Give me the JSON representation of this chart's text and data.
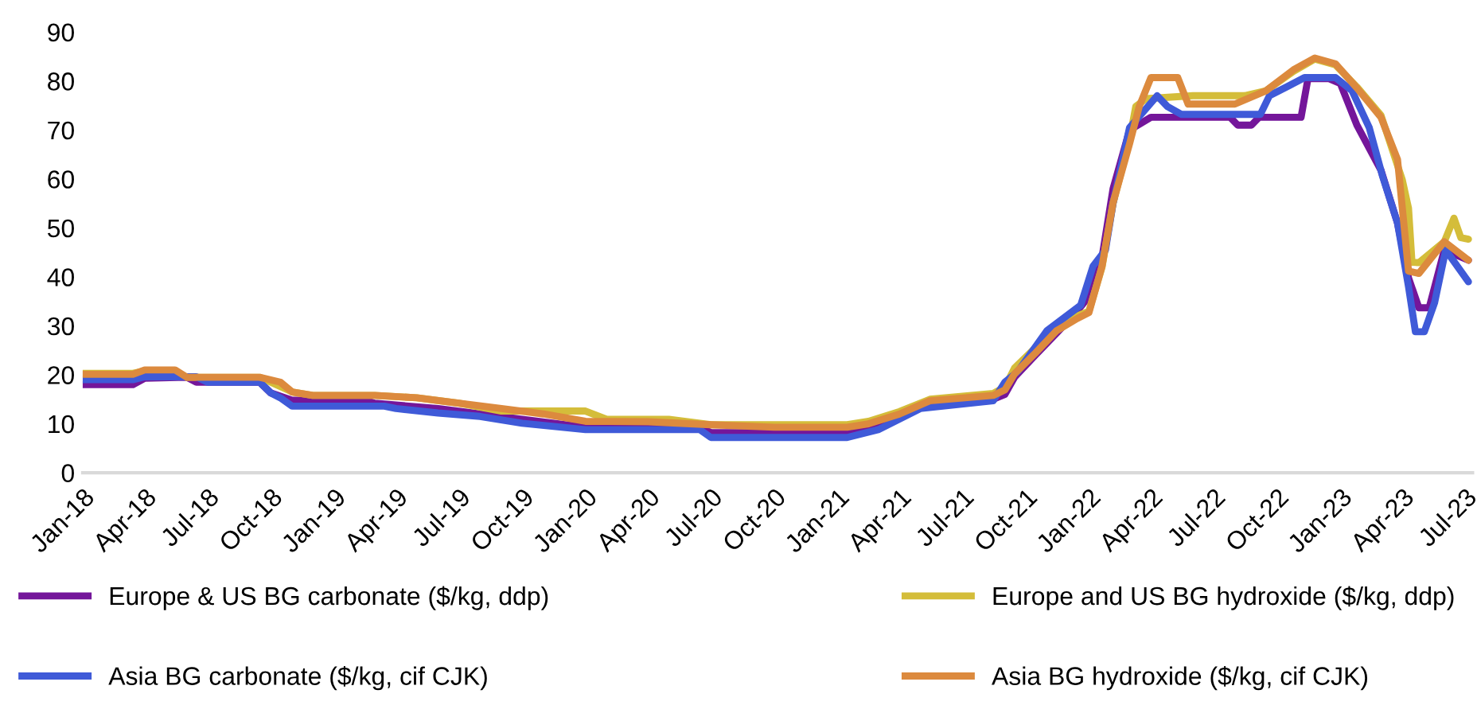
{
  "chart_data": {
    "type": "line",
    "ylim": [
      0,
      90
    ],
    "yticks": [
      0,
      10,
      20,
      30,
      40,
      50,
      60,
      70,
      80,
      90
    ],
    "xlim": [
      "2018-01-01",
      "2023-07-12"
    ],
    "xticks": [
      {
        "value": "2018-01-01",
        "label": "Jan-18"
      },
      {
        "value": "2018-04-01",
        "label": "Apr-18"
      },
      {
        "value": "2018-07-01",
        "label": "Jul-18"
      },
      {
        "value": "2018-10-01",
        "label": "Oct-18"
      },
      {
        "value": "2019-01-01",
        "label": "Jan-19"
      },
      {
        "value": "2019-04-01",
        "label": "Apr-19"
      },
      {
        "value": "2019-07-01",
        "label": "Jul-19"
      },
      {
        "value": "2019-10-01",
        "label": "Oct-19"
      },
      {
        "value": "2020-01-01",
        "label": "Jan-20"
      },
      {
        "value": "2020-04-01",
        "label": "Apr-20"
      },
      {
        "value": "2020-07-01",
        "label": "Jul-20"
      },
      {
        "value": "2020-10-01",
        "label": "Oct-20"
      },
      {
        "value": "2021-01-01",
        "label": "Jan-21"
      },
      {
        "value": "2021-04-01",
        "label": "Apr-21"
      },
      {
        "value": "2021-07-01",
        "label": "Jul-21"
      },
      {
        "value": "2021-10-01",
        "label": "Oct-21"
      },
      {
        "value": "2022-01-01",
        "label": "Jan-22"
      },
      {
        "value": "2022-04-01",
        "label": "Apr-22"
      },
      {
        "value": "2022-07-01",
        "label": "Jul-22"
      },
      {
        "value": "2022-10-01",
        "label": "Oct-22"
      },
      {
        "value": "2023-01-01",
        "label": "Jan-23"
      },
      {
        "value": "2023-04-01",
        "label": "Apr-23"
      },
      {
        "value": "2023-07-01",
        "label": "Jul-23"
      }
    ],
    "grid": false,
    "legend": "bottom",
    "marker": "none",
    "line_style": "solid",
    "series": [
      {
        "name": "Europe & US BG carbonate ($/kg, ddp)",
        "color": "#74169a",
        "x": [
          "2018-01-01",
          "2018-03-15",
          "2018-04-01",
          "2018-06-01",
          "2018-06-15",
          "2018-09-15",
          "2018-10-01",
          "2018-11-01",
          "2019-02-15",
          "2019-03-01",
          "2019-06-01",
          "2019-08-01",
          "2019-10-01",
          "2020-01-01",
          "2020-06-15",
          "2020-07-01",
          "2021-01-15",
          "2021-02-15",
          "2021-04-01",
          "2021-05-15",
          "2021-08-15",
          "2021-09-01",
          "2021-09-15",
          "2021-10-15",
          "2021-11-15",
          "2021-12-15",
          "2022-01-01",
          "2022-01-20",
          "2022-02-05",
          "2022-03-01",
          "2022-04-01",
          "2022-07-25",
          "2022-08-05",
          "2022-08-25",
          "2022-09-05",
          "2022-11-05",
          "2022-11-15",
          "2022-12-15",
          "2023-01-01",
          "2023-01-25",
          "2023-03-01",
          "2023-03-25",
          "2023-04-10",
          "2023-04-25",
          "2023-05-10",
          "2023-06-01",
          "2023-07-06"
        ],
        "values": [
          18,
          18,
          19.3,
          19.5,
          18.5,
          18.5,
          16.3,
          14.8,
          14.8,
          14.2,
          13.1,
          12,
          10.9,
          9.3,
          9.3,
          8.2,
          8.2,
          9,
          11.5,
          14,
          15,
          16,
          19.5,
          24,
          28.5,
          33,
          36,
          44,
          58,
          70,
          72.6,
          72.6,
          71,
          71,
          72.6,
          72.6,
          80.5,
          80.5,
          79.5,
          71,
          61.8,
          51,
          39.8,
          33.7,
          33.7,
          45.5,
          43.4
        ]
      },
      {
        "name": "Europe and US BG hydroxide ($/kg, ddp)",
        "color": "#d4bd3a",
        "x": [
          "2018-01-01",
          "2018-03-15",
          "2018-04-01",
          "2018-05-15",
          "2018-06-01",
          "2018-09-15",
          "2018-11-01",
          "2018-12-01",
          "2019-03-01",
          "2019-05-01",
          "2019-07-01",
          "2019-09-01",
          "2020-01-01",
          "2020-02-01",
          "2020-05-01",
          "2020-07-01",
          "2021-01-15",
          "2021-02-15",
          "2021-04-01",
          "2021-05-15",
          "2021-08-15",
          "2021-09-01",
          "2021-09-15",
          "2021-10-15",
          "2021-11-15",
          "2021-12-15",
          "2022-01-01",
          "2022-01-20",
          "2022-02-05",
          "2022-03-01",
          "2022-03-10",
          "2022-03-25",
          "2022-06-01",
          "2022-08-15",
          "2022-09-15",
          "2022-10-25",
          "2022-11-25",
          "2022-12-25",
          "2023-01-25",
          "2023-03-01",
          "2023-04-01",
          "2023-04-10",
          "2023-04-15",
          "2023-04-25",
          "2023-06-01",
          "2023-06-15",
          "2023-06-25",
          "2023-07-06"
        ],
        "values": [
          20.3,
          20.3,
          20.8,
          20.8,
          19.5,
          19.5,
          16.5,
          15.8,
          15.8,
          15.3,
          14.2,
          12.6,
          12.6,
          10.9,
          10.9,
          9.8,
          9.8,
          10.5,
          12.5,
          15,
          16.2,
          17.5,
          21.4,
          25.5,
          29.5,
          32,
          33,
          42,
          55,
          68,
          74.8,
          76.4,
          77,
          77,
          78,
          82,
          84.5,
          83.3,
          78.8,
          73,
          59.8,
          54,
          43,
          42.9,
          47.2,
          52,
          48,
          47.7
        ]
      },
      {
        "name": "Asia BG carbonate ($/kg, cif CJK)",
        "color": "#3f5ad8",
        "x": [
          "2018-01-01",
          "2018-03-15",
          "2018-04-01",
          "2018-06-15",
          "2018-07-01",
          "2018-09-15",
          "2018-10-01",
          "2018-10-15",
          "2018-11-01",
          "2019-03-15",
          "2019-04-01",
          "2019-06-01",
          "2019-08-01",
          "2019-10-01",
          "2020-01-01",
          "2020-06-15",
          "2020-07-01",
          "2021-01-15",
          "2021-03-01",
          "2021-05-01",
          "2021-08-15",
          "2021-09-01",
          "2021-09-20",
          "2021-11-01",
          "2021-12-20",
          "2022-01-07",
          "2022-01-25",
          "2022-02-05",
          "2022-03-01",
          "2022-04-10",
          "2022-04-25",
          "2022-05-15",
          "2022-09-07",
          "2022-09-20",
          "2022-10-15",
          "2022-11-10",
          "2022-12-25",
          "2023-01-18",
          "2023-02-12",
          "2023-03-03",
          "2023-03-25",
          "2023-04-10",
          "2023-04-20",
          "2023-05-03",
          "2023-05-18",
          "2023-06-03",
          "2023-07-06"
        ],
        "values": [
          19,
          19,
          19.6,
          19.6,
          18.5,
          18.5,
          16.3,
          15.3,
          13.6,
          13.6,
          13.1,
          12.2,
          11.5,
          10.1,
          8.8,
          8.8,
          7.2,
          7.2,
          8.8,
          13.1,
          14.7,
          18.5,
          20.7,
          29,
          34.2,
          42.2,
          45.5,
          55,
          70.5,
          77,
          74.8,
          73.2,
          73.2,
          77,
          78.8,
          80.7,
          80.7,
          78,
          70.5,
          60.7,
          51,
          38,
          28.8,
          28.8,
          34.8,
          45.5,
          39
        ]
      },
      {
        "name": "Asia BG hydroxide ($/kg, cif CJK)",
        "color": "#dc8a3e",
        "x": [
          "2018-01-01",
          "2018-03-15",
          "2018-04-01",
          "2018-05-15",
          "2018-06-01",
          "2018-09-15",
          "2018-10-15",
          "2018-11-01",
          "2018-12-01",
          "2019-03-01",
          "2019-05-01",
          "2019-07-01",
          "2019-09-01",
          "2019-11-01",
          "2020-01-01",
          "2020-04-01",
          "2020-07-01",
          "2020-10-01",
          "2021-01-15",
          "2021-02-15",
          "2021-04-01",
          "2021-05-15",
          "2021-08-15",
          "2021-09-01",
          "2021-09-15",
          "2021-10-15",
          "2021-11-15",
          "2021-12-15",
          "2022-01-01",
          "2022-01-20",
          "2022-02-05",
          "2022-03-01",
          "2022-03-15",
          "2022-04-01",
          "2022-05-10",
          "2022-05-25",
          "2022-08-01",
          "2022-09-15",
          "2022-10-25",
          "2022-11-25",
          "2022-12-25",
          "2023-01-25",
          "2023-03-01",
          "2023-03-25",
          "2023-04-10",
          "2023-04-25",
          "2023-06-01",
          "2023-07-06"
        ],
        "values": [
          20.1,
          20.1,
          21,
          21,
          19.5,
          19.5,
          18.5,
          16.5,
          15.8,
          15.8,
          15.3,
          14.2,
          13.1,
          12,
          10.5,
          10.4,
          9.8,
          9.3,
          9.3,
          10,
          12,
          14.7,
          15.8,
          16.9,
          20.2,
          24.4,
          29,
          31.5,
          32.7,
          42.2,
          55.2,
          67.2,
          74.8,
          80.7,
          80.7,
          75.3,
          75.3,
          78,
          82.3,
          84.7,
          83.5,
          78.6,
          72.6,
          64,
          41.2,
          40.7,
          47.2,
          43.4
        ]
      }
    ]
  }
}
